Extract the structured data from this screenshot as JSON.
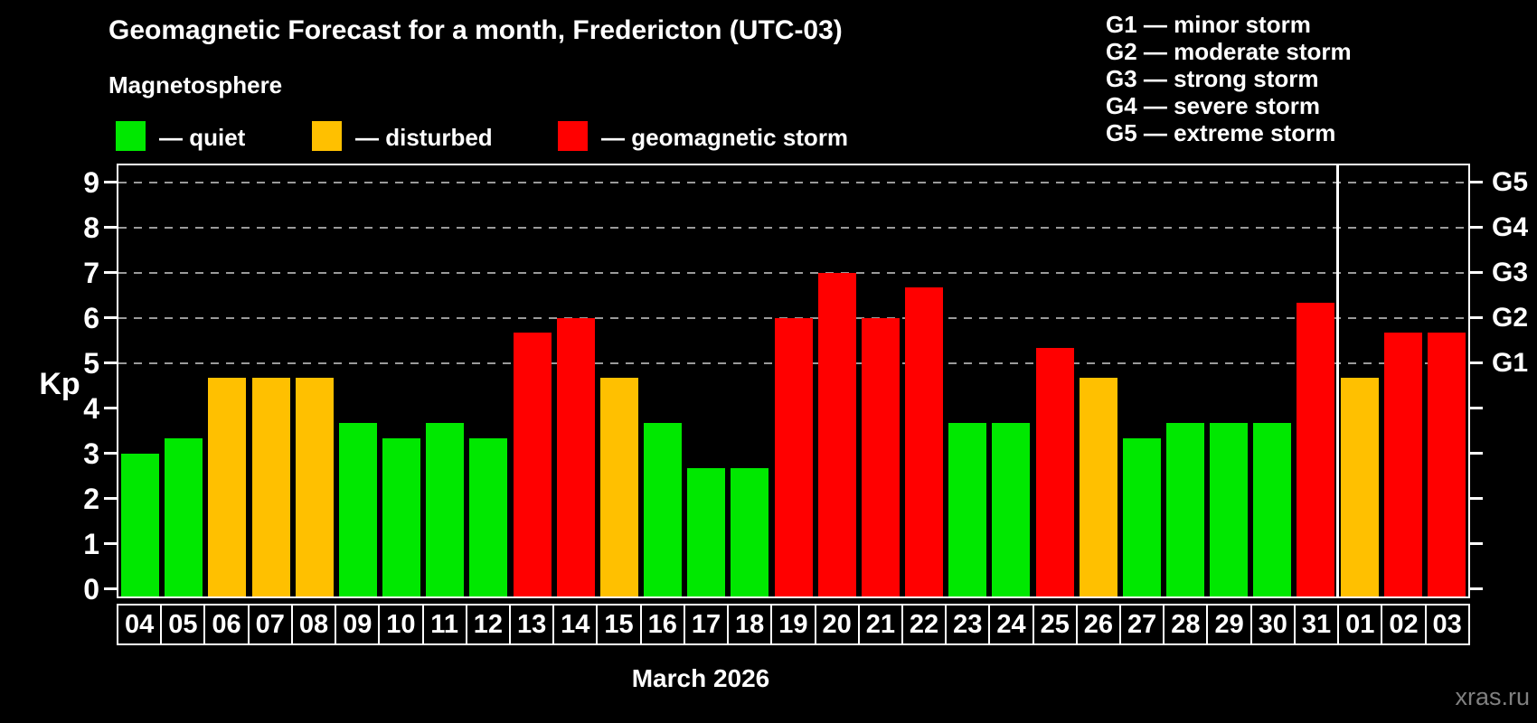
{
  "title": "Geomagnetic Forecast for a month, Fredericton (UTC-03)",
  "subtitle": "Magnetosphere",
  "watermark": "xras.ru",
  "colors": {
    "quiet": "#00e800",
    "disturbed": "#ffc000",
    "storm": "#ff0000",
    "grid": "#9a9a9a",
    "axis": "#ffffff",
    "watermark": "#808080"
  },
  "legend": {
    "items": [
      {
        "status": "quiet",
        "label": "— quiet"
      },
      {
        "status": "disturbed",
        "label": "— disturbed"
      },
      {
        "status": "storm",
        "label": "— geomagnetic storm"
      }
    ]
  },
  "g_legend": [
    "G1 — minor storm",
    "G2 — moderate storm",
    "G3 — strong storm",
    "G4 — severe storm",
    "G5 — extreme storm"
  ],
  "chart_data": {
    "type": "bar",
    "title": "Geomagnetic Forecast for a month, Fredericton (UTC-03)",
    "subtitle": "Magnetosphere",
    "xlabel": "March 2026",
    "ylabel": "Kp",
    "ylim": [
      0,
      9
    ],
    "yticks": [
      0,
      1,
      2,
      3,
      4,
      5,
      6,
      7,
      8,
      9
    ],
    "grid": "dashed horizontal at G-storm levels only",
    "gridlines_at": [
      5,
      6,
      7,
      8,
      9
    ],
    "legend_position": "top-left",
    "right_axis_labels": [
      {
        "value": 5,
        "label": "G1"
      },
      {
        "value": 6,
        "label": "G2"
      },
      {
        "value": 7,
        "label": "G3"
      },
      {
        "value": 8,
        "label": "G4"
      },
      {
        "value": 9,
        "label": "G5"
      }
    ],
    "categories": [
      "04",
      "05",
      "06",
      "07",
      "08",
      "09",
      "10",
      "11",
      "12",
      "13",
      "14",
      "15",
      "16",
      "17",
      "18",
      "19",
      "20",
      "21",
      "22",
      "23",
      "24",
      "25",
      "26",
      "27",
      "28",
      "29",
      "30",
      "31",
      "01",
      "02",
      "03"
    ],
    "values": [
      3.0,
      3.33,
      4.67,
      4.67,
      4.67,
      3.67,
      3.33,
      3.67,
      3.33,
      5.67,
      6.0,
      4.67,
      3.67,
      2.67,
      2.67,
      6.0,
      7.0,
      6.0,
      6.67,
      3.67,
      3.67,
      5.33,
      4.67,
      3.33,
      3.67,
      3.67,
      3.67,
      6.33,
      4.67,
      5.67,
      5.67
    ],
    "statuses": [
      "quiet",
      "quiet",
      "disturbed",
      "disturbed",
      "disturbed",
      "quiet",
      "quiet",
      "quiet",
      "quiet",
      "storm",
      "storm",
      "disturbed",
      "quiet",
      "quiet",
      "quiet",
      "storm",
      "storm",
      "storm",
      "storm",
      "quiet",
      "quiet",
      "storm",
      "disturbed",
      "quiet",
      "quiet",
      "quiet",
      "quiet",
      "storm",
      "disturbed",
      "storm",
      "storm"
    ],
    "month_separator_after_index": 27
  }
}
